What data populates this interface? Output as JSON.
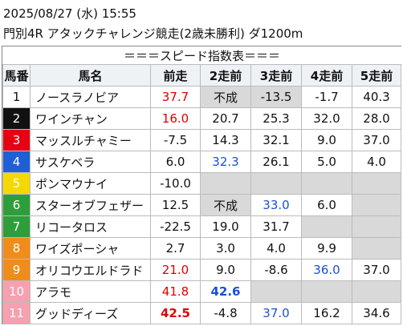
{
  "header": {
    "datetime": "2025/08/27 (水) 15:55",
    "race": "門別4R アタックチャレンジ競走(2歳未勝利) ダ1200m"
  },
  "table": {
    "caption": "＝＝＝スピード指数表＝＝＝",
    "columns": [
      "馬番",
      "馬名",
      "前走",
      "2走前",
      "3走前",
      "4走前",
      "5走前"
    ],
    "rows": [
      [
        "1",
        "ノースラノビア",
        "37.7",
        "不成",
        "-13.5",
        "-1.7",
        "40.3"
      ],
      [
        "2",
        "ワインチャン",
        "16.0",
        "20.7",
        "25.3",
        "32.0",
        "28.0"
      ],
      [
        "3",
        "マッスルチャミー",
        "-7.5",
        "14.3",
        "32.1",
        "9.0",
        "37.0"
      ],
      [
        "4",
        "サスケベラ",
        "6.0",
        "32.3",
        "26.1",
        "5.0",
        "4.0"
      ],
      [
        "5",
        "ポンマウナイ",
        "-10.0",
        null,
        null,
        null,
        null
      ],
      [
        "6",
        "スターオブフェザー",
        "12.5",
        "不成",
        "33.0",
        "6.0",
        null
      ],
      [
        "7",
        "リコータロス",
        "-22.5",
        "19.0",
        "31.7",
        null,
        null
      ],
      [
        "8",
        "ワイズポーシャ",
        "2.7",
        "3.0",
        "4.0",
        "9.9",
        null
      ],
      [
        "9",
        "オリコウエルドラド",
        "21.0",
        "9.0",
        "-8.6",
        "36.0",
        "37.0"
      ],
      [
        "10",
        "アラモ",
        "41.8",
        "42.6",
        null,
        null,
        null
      ],
      [
        "11",
        "グッドディーズ",
        "42.5",
        "-4.8",
        "37.0",
        "16.2",
        "34.6"
      ]
    ]
  }
}
